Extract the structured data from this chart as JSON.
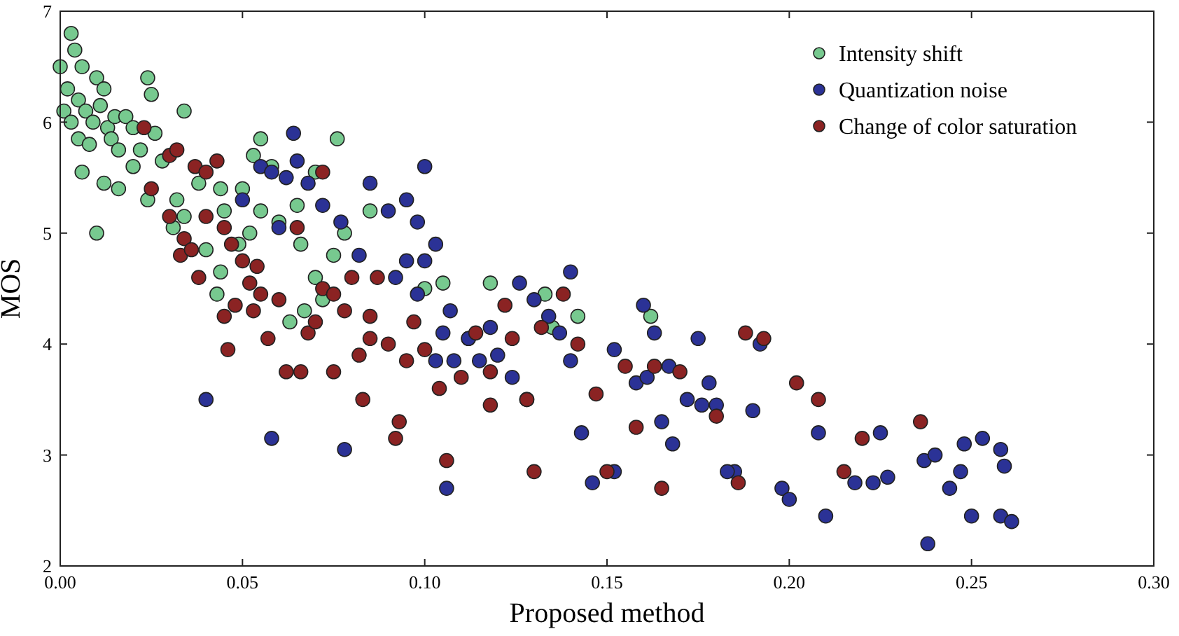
{
  "chart_data": {
    "type": "scatter",
    "xlabel": "Proposed method",
    "ylabel": "MOS",
    "xlim": [
      0,
      0.3
    ],
    "ylim": [
      2,
      7
    ],
    "xticks": [
      {
        "value": 0,
        "label": "0.00"
      },
      {
        "value": 0.05,
        "label": "0.05"
      },
      {
        "value": 0.1,
        "label": "0.10"
      },
      {
        "value": 0.15,
        "label": "0.15"
      },
      {
        "value": 0.2,
        "label": "0.20"
      },
      {
        "value": 0.25,
        "label": "0.25"
      },
      {
        "value": 0.3,
        "label": "0.30"
      }
    ],
    "yticks": [
      2,
      3,
      4,
      5,
      6,
      7
    ],
    "grid": false,
    "legend": "top right",
    "marker": "circle",
    "series": [
      {
        "name": "Intensity shift",
        "color": "#77c98f",
        "x": [
          0,
          0.002,
          0.003,
          0.004,
          0.006,
          0.001,
          0.003,
          0.005,
          0.007,
          0.009,
          0.01,
          0.012,
          0.011,
          0.013,
          0.015,
          0.005,
          0.008,
          0.01,
          0.014,
          0.016,
          0.018,
          0.02,
          0.022,
          0.024,
          0.025,
          0.024,
          0.02,
          0.012,
          0.016,
          0.006,
          0.026,
          0.028,
          0.034,
          0.032,
          0.034,
          0.031,
          0.038,
          0.044,
          0.045,
          0.04,
          0.044,
          0.043,
          0.049,
          0.052,
          0.055,
          0.053,
          0.055,
          0.058,
          0.05,
          0.06,
          0.065,
          0.066,
          0.07,
          0.072,
          0.076,
          0.078,
          0.075,
          0.067,
          0.063,
          0.07,
          0.085,
          0.1,
          0.105,
          0.118,
          0.133,
          0.142,
          0.162,
          0.112,
          0.135
        ],
        "values": [
          6.5,
          6.3,
          6.8,
          6.65,
          6.5,
          6.1,
          6,
          6.2,
          6.1,
          6,
          6.4,
          6.3,
          6.15,
          5.95,
          6.05,
          5.85,
          5.8,
          5,
          5.85,
          5.75,
          6.05,
          5.95,
          5.75,
          6.4,
          6.25,
          5.3,
          5.6,
          5.45,
          5.4,
          5.55,
          5.9,
          5.65,
          6.1,
          5.3,
          5.15,
          5.05,
          5.45,
          5.4,
          5.2,
          4.85,
          4.65,
          4.45,
          4.9,
          5,
          5.2,
          5.7,
          5.85,
          5.6,
          5.4,
          5.1,
          5.25,
          4.9,
          4.6,
          4.4,
          5.85,
          5,
          4.8,
          4.3,
          4.2,
          5.55,
          5.2,
          4.5,
          4.55,
          4.55,
          4.45,
          4.25,
          4.25,
          4.05,
          4.15
        ]
      },
      {
        "name": "Quantization noise",
        "color": "#2b3296",
        "x": [
          0.04,
          0.058,
          0.078,
          0.05,
          0.055,
          0.058,
          0.064,
          0.065,
          0.06,
          0.062,
          0.068,
          0.072,
          0.077,
          0.082,
          0.085,
          0.09,
          0.095,
          0.098,
          0.1,
          0.095,
          0.1,
          0.103,
          0.092,
          0.098,
          0.107,
          0.105,
          0.103,
          0.108,
          0.112,
          0.118,
          0.12,
          0.124,
          0.126,
          0.13,
          0.134,
          0.14,
          0.137,
          0.14,
          0.143,
          0.146,
          0.152,
          0.152,
          0.158,
          0.16,
          0.161,
          0.163,
          0.167,
          0.165,
          0.168,
          0.172,
          0.175,
          0.176,
          0.178,
          0.18,
          0.185,
          0.19,
          0.192,
          0.198,
          0.2,
          0.208,
          0.21,
          0.218,
          0.223,
          0.225,
          0.227,
          0.237,
          0.238,
          0.24,
          0.244,
          0.247,
          0.248,
          0.25,
          0.253,
          0.258,
          0.258,
          0.259,
          0.261,
          0.106,
          0.128,
          0.183,
          0.115
        ],
        "values": [
          3.5,
          3.15,
          3.05,
          5.3,
          5.6,
          5.55,
          5.9,
          5.65,
          5.05,
          5.5,
          5.45,
          5.25,
          5.1,
          4.8,
          5.45,
          5.2,
          5.3,
          5.1,
          5.6,
          4.75,
          4.75,
          4.9,
          4.6,
          4.45,
          4.3,
          4.1,
          3.85,
          3.85,
          4.05,
          4.15,
          3.9,
          3.7,
          4.55,
          4.4,
          4.25,
          4.65,
          4.1,
          3.85,
          3.2,
          2.75,
          2.85,
          3.95,
          3.65,
          4.35,
          3.7,
          4.1,
          3.8,
          3.3,
          3.1,
          3.5,
          4.05,
          3.45,
          3.65,
          3.45,
          2.85,
          3.4,
          4,
          2.7,
          2.6,
          3.2,
          2.45,
          2.75,
          2.75,
          3.2,
          2.8,
          2.95,
          2.2,
          3,
          2.7,
          2.85,
          3.1,
          2.45,
          3.15,
          2.45,
          3.05,
          2.9,
          2.4,
          2.7,
          3.5,
          2.85,
          3.85
        ]
      },
      {
        "name": "Change of color saturation",
        "color": "#8b2323",
        "x": [
          0.023,
          0.025,
          0.03,
          0.032,
          0.037,
          0.04,
          0.043,
          0.03,
          0.034,
          0.033,
          0.036,
          0.038,
          0.04,
          0.045,
          0.047,
          0.05,
          0.052,
          0.054,
          0.055,
          0.048,
          0.045,
          0.046,
          0.053,
          0.057,
          0.06,
          0.062,
          0.066,
          0.068,
          0.07,
          0.072,
          0.075,
          0.078,
          0.08,
          0.082,
          0.083,
          0.085,
          0.087,
          0.09,
          0.092,
          0.093,
          0.095,
          0.097,
          0.1,
          0.104,
          0.106,
          0.11,
          0.114,
          0.118,
          0.118,
          0.122,
          0.124,
          0.128,
          0.13,
          0.132,
          0.138,
          0.142,
          0.147,
          0.15,
          0.155,
          0.158,
          0.163,
          0.165,
          0.17,
          0.18,
          0.186,
          0.188,
          0.193,
          0.202,
          0.208,
          0.215,
          0.22,
          0.236,
          0.065,
          0.072,
          0.085,
          0.075
        ],
        "values": [
          5.95,
          5.4,
          5.7,
          5.75,
          5.6,
          5.55,
          5.65,
          5.15,
          4.95,
          4.8,
          4.85,
          4.6,
          5.15,
          5.05,
          4.9,
          4.75,
          4.55,
          4.7,
          4.45,
          4.35,
          4.25,
          3.95,
          4.3,
          4.05,
          4.4,
          3.75,
          3.75,
          4.1,
          4.2,
          4.5,
          3.75,
          4.3,
          4.6,
          3.9,
          3.5,
          4.05,
          4.6,
          4,
          3.15,
          3.3,
          3.85,
          4.2,
          3.95,
          3.6,
          2.95,
          3.7,
          4.1,
          3.45,
          3.75,
          4.35,
          4.05,
          3.5,
          2.85,
          4.15,
          4.45,
          4,
          3.55,
          2.85,
          3.8,
          3.25,
          3.8,
          2.7,
          3.75,
          3.35,
          2.75,
          4.1,
          4.05,
          3.65,
          3.5,
          2.85,
          3.15,
          3.3,
          5.05,
          5.55,
          4.25,
          4.45
        ]
      }
    ]
  }
}
